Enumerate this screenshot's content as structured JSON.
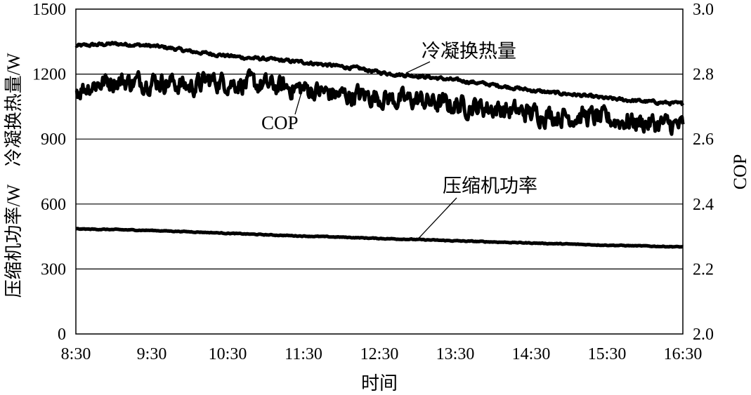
{
  "chart_data": {
    "type": "line",
    "xlabel": "时间",
    "ylabel_left": "压缩机功率/W    冷凝换热量/W",
    "ylabel_right": "COP",
    "x_ticks": [
      "8:30",
      "9:30",
      "10:30",
      "11:30",
      "12:30",
      "13:30",
      "14:30",
      "15:30",
      "16:30"
    ],
    "y_left_ticks": [
      "0",
      "300",
      "600",
      "900",
      "1200",
      "1500"
    ],
    "y_right_ticks": [
      "2.0",
      "2.2",
      "2.4",
      "2.6",
      "2.8",
      "3.0"
    ],
    "ylim_left": [
      0,
      1500
    ],
    "ylim_right": [
      2.0,
      3.0
    ],
    "x_range_hours": [
      8.5,
      16.5
    ],
    "gridlines_left": [
      300,
      600,
      900,
      1200
    ],
    "series": [
      {
        "name": "冷凝换热量",
        "axis": "left",
        "x": [
          8.5,
          8.75,
          9.0,
          9.25,
          9.5,
          9.75,
          10.0,
          10.25,
          10.5,
          10.75,
          11.0,
          11.25,
          11.5,
          11.75,
          12.0,
          12.25,
          12.5,
          12.75,
          13.0,
          13.25,
          13.5,
          13.75,
          14.0,
          14.25,
          14.5,
          14.75,
          15.0,
          15.25,
          15.5,
          15.75,
          16.0,
          16.25,
          16.5
        ],
        "values": [
          1330,
          1335,
          1340,
          1336,
          1330,
          1320,
          1305,
          1295,
          1285,
          1275,
          1270,
          1262,
          1255,
          1245,
          1235,
          1225,
          1208,
          1198,
          1192,
          1182,
          1172,
          1162,
          1150,
          1138,
          1125,
          1115,
          1108,
          1098,
          1088,
          1080,
          1074,
          1068,
          1062
        ],
        "noise": 6
      },
      {
        "name": "COP",
        "axis": "right",
        "x": [
          8.5,
          8.75,
          9.0,
          9.25,
          9.5,
          9.75,
          10.0,
          10.25,
          10.5,
          10.75,
          11.0,
          11.25,
          11.5,
          11.75,
          12.0,
          12.25,
          12.5,
          12.75,
          13.0,
          13.25,
          13.5,
          13.75,
          14.0,
          14.25,
          14.5,
          14.75,
          15.0,
          15.25,
          15.5,
          15.75,
          16.0,
          16.25,
          16.5
        ],
        "values": [
          2.75,
          2.77,
          2.78,
          2.775,
          2.78,
          2.775,
          2.76,
          2.78,
          2.775,
          2.77,
          2.765,
          2.76,
          2.755,
          2.745,
          2.735,
          2.735,
          2.73,
          2.72,
          2.72,
          2.71,
          2.705,
          2.7,
          2.695,
          2.685,
          2.68,
          2.675,
          2.67,
          2.67,
          2.66,
          2.655,
          2.65,
          2.645,
          2.64
        ],
        "noise": 0.025
      },
      {
        "name": "压缩机功率",
        "axis": "left",
        "x": [
          8.5,
          9.0,
          9.5,
          10.0,
          10.5,
          11.0,
          11.5,
          12.0,
          12.5,
          13.0,
          13.5,
          14.0,
          14.5,
          15.0,
          15.5,
          16.0,
          16.5
        ],
        "values": [
          485,
          482,
          478,
          472,
          465,
          458,
          452,
          447,
          441,
          436,
          430,
          425,
          420,
          415,
          410,
          406,
          402
        ],
        "noise": 1.5
      }
    ],
    "annotations": [
      {
        "text": "冷凝换热量",
        "series": "冷凝换热量",
        "at_x": 12.85,
        "at_y": 1205
      },
      {
        "text": "COP",
        "series": "COP",
        "at_x": 11.5,
        "at_y": 2.765
      },
      {
        "text": "压缩机功率",
        "series": "压缩机功率",
        "at_x": 13.0,
        "at_y": 435
      }
    ]
  }
}
